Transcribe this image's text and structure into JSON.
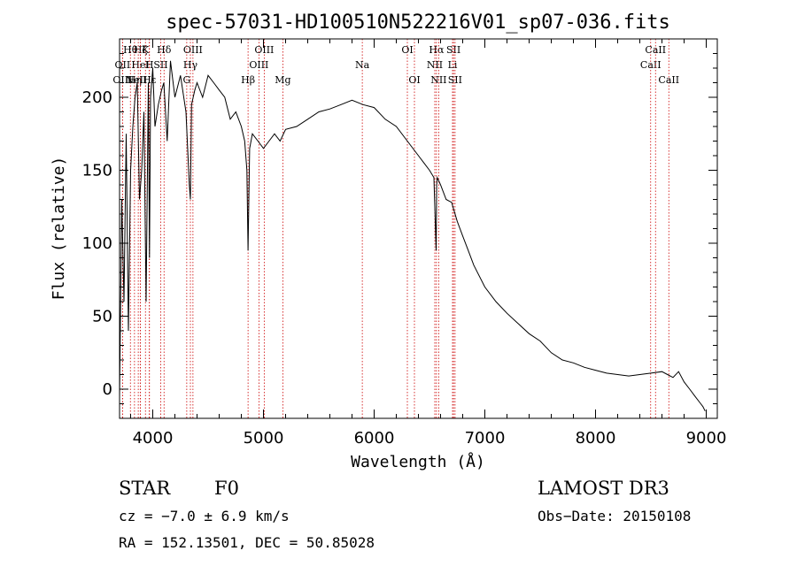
{
  "chart_data": {
    "type": "line",
    "title": "spec-57031-HD100510N522216V01_sp07-036.fits",
    "xlabel": "Wavelength (Å)",
    "ylabel": "Flux (relative)",
    "xlim": [
      3700,
      9100
    ],
    "ylim": [
      -20,
      240
    ],
    "xticks": [
      4000,
      5000,
      6000,
      7000,
      8000,
      9000
    ],
    "yticks": [
      0,
      50,
      100,
      150,
      200
    ],
    "grid": false,
    "series": [
      {
        "name": "spectrum",
        "x": [
          3700,
          3720,
          3740,
          3760,
          3780,
          3800,
          3820,
          3840,
          3860,
          3880,
          3900,
          3920,
          3940,
          3960,
          3970,
          3980,
          4000,
          4020,
          4050,
          4080,
          4100,
          4130,
          4160,
          4200,
          4250,
          4300,
          4330,
          4340,
          4350,
          4380,
          4400,
          4450,
          4500,
          4550,
          4600,
          4650,
          4700,
          4750,
          4800,
          4830,
          4850,
          4861,
          4875,
          4900,
          4950,
          5000,
          5050,
          5100,
          5150,
          5200,
          5300,
          5400,
          5500,
          5600,
          5700,
          5800,
          5900,
          6000,
          6100,
          6200,
          6300,
          6400,
          6450,
          6500,
          6540,
          6560,
          6565,
          6570,
          6600,
          6650,
          6700,
          6750,
          6800,
          6850,
          6900,
          7000,
          7100,
          7200,
          7300,
          7400,
          7500,
          7600,
          7700,
          7800,
          7900,
          8000,
          8100,
          8200,
          8300,
          8400,
          8500,
          8600,
          8650,
          8700,
          8750,
          8800,
          8850,
          8900,
          8950,
          8970,
          8990
        ],
        "y": [
          -5,
          130,
          60,
          175,
          40,
          150,
          180,
          200,
          210,
          130,
          150,
          190,
          60,
          210,
          90,
          200,
          220,
          180,
          195,
          205,
          210,
          170,
          225,
          200,
          215,
          190,
          140,
          130,
          195,
          205,
          210,
          200,
          215,
          210,
          205,
          200,
          185,
          190,
          180,
          170,
          150,
          95,
          165,
          175,
          170,
          165,
          170,
          175,
          170,
          178,
          180,
          185,
          190,
          192,
          195,
          198,
          195,
          193,
          185,
          180,
          170,
          160,
          155,
          150,
          145,
          95,
          140,
          145,
          140,
          130,
          128,
          115,
          105,
          95,
          85,
          70,
          60,
          52,
          45,
          38,
          33,
          25,
          20,
          18,
          15,
          13,
          11,
          10,
          9,
          10,
          11,
          12,
          10,
          8,
          12,
          5,
          0,
          -5,
          -10,
          -12,
          -15
        ]
      }
    ],
    "lines": [
      {
        "name": "Hθ",
        "wl": 3798,
        "row": 0
      },
      {
        "name": "OII",
        "wl": 3727,
        "row": 1
      },
      {
        "name": "OIII",
        "wl": 3727,
        "row": 2
      },
      {
        "name": "Hη",
        "wl": 3835,
        "row": 2
      },
      {
        "name": "Hζ",
        "wl": 3889,
        "row": 0
      },
      {
        "name": "HeI",
        "wl": 3889,
        "row": 1
      },
      {
        "name": "K",
        "wl": 3934,
        "row": 0
      },
      {
        "name": "NeIII",
        "wl": 3869,
        "row": 2
      },
      {
        "name": "H",
        "wl": 3969,
        "row": 1
      },
      {
        "name": "SII",
        "wl": 4072,
        "row": 1
      },
      {
        "name": "Hδ",
        "wl": 4102,
        "row": 0
      },
      {
        "name": "Hε",
        "wl": 3970,
        "row": 2
      },
      {
        "name": "OIII",
        "wl": 4363,
        "row": 0
      },
      {
        "name": "Hγ",
        "wl": 4340,
        "row": 1
      },
      {
        "name": "G",
        "wl": 4307,
        "row": 2
      },
      {
        "name": "Hβ",
        "wl": 4861,
        "row": 2
      },
      {
        "name": "OIII",
        "wl": 4959,
        "row": 1
      },
      {
        "name": "OIII",
        "wl": 5007,
        "row": 0
      },
      {
        "name": "Mg",
        "wl": 5175,
        "row": 2
      },
      {
        "name": "Na",
        "wl": 5893,
        "row": 1
      },
      {
        "name": "OI",
        "wl": 6300,
        "row": 0
      },
      {
        "name": "OI",
        "wl": 6364,
        "row": 2
      },
      {
        "name": "Hα",
        "wl": 6563,
        "row": 0
      },
      {
        "name": "NII",
        "wl": 6548,
        "row": 1
      },
      {
        "name": "NII",
        "wl": 6583,
        "row": 2
      },
      {
        "name": "SII",
        "wl": 6717,
        "row": 0
      },
      {
        "name": "Li",
        "wl": 6708,
        "row": 1
      },
      {
        "name": "SII",
        "wl": 6731,
        "row": 2
      },
      {
        "name": "CaII",
        "wl": 8498,
        "row": 1
      },
      {
        "name": "CaII",
        "wl": 8542,
        "row": 0
      },
      {
        "name": "CaII",
        "wl": 8662,
        "row": 2
      }
    ],
    "line_color": "#cc0000"
  },
  "info": {
    "class": "STAR",
    "subclass": "F0",
    "survey": "LAMOST DR3",
    "cz": "cz = −7.0 ± 6.9 km/s",
    "obsdate": "Obs−Date: 20150108",
    "radec": "RA = 152.13501, DEC =  50.85028"
  }
}
